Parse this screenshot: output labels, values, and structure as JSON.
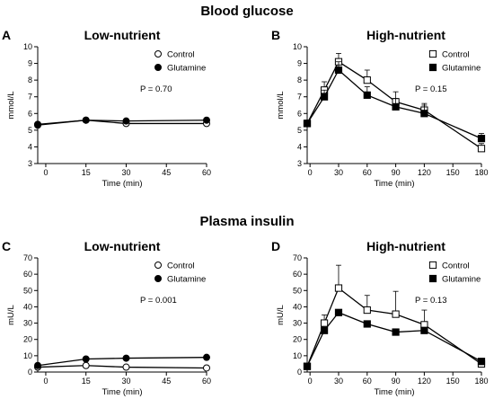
{
  "section_titles": {
    "top": "Blood glucose",
    "bottom": "Plasma insulin"
  },
  "chart_data": [
    {
      "panel": "A",
      "title": "Low-nutrient",
      "type": "line",
      "xlabel": "Time (min)",
      "ylabel": "mmol/L",
      "xlim": [
        -3,
        60
      ],
      "ylim": [
        3,
        10
      ],
      "xticks": [
        0,
        15,
        30,
        45,
        60
      ],
      "yticks": [
        3,
        4,
        5,
        6,
        7,
        8,
        9,
        10
      ],
      "pvalue": "P = 0.70",
      "legend": "top-right",
      "series": [
        {
          "name": "Control",
          "marker": "open-circle",
          "x": [
            -3,
            15,
            30,
            60
          ],
          "y": [
            5.3,
            5.6,
            5.4,
            5.4
          ],
          "err": [
            0,
            0,
            0,
            0
          ]
        },
        {
          "name": "Glutamine",
          "marker": "filled-circle",
          "x": [
            -3,
            15,
            30,
            60
          ],
          "y": [
            5.35,
            5.6,
            5.55,
            5.6
          ],
          "err": [
            0,
            0,
            0,
            0
          ]
        }
      ]
    },
    {
      "panel": "B",
      "title": "High-nutrient",
      "type": "line",
      "xlabel": "Time (min)",
      "ylabel": "mmol/L",
      "xlim": [
        -3,
        180
      ],
      "ylim": [
        3,
        10
      ],
      "xticks": [
        0,
        30,
        60,
        90,
        120,
        150,
        180
      ],
      "yticks": [
        3,
        4,
        5,
        6,
        7,
        8,
        9,
        10
      ],
      "pvalue": "P = 0.15",
      "legend": "top-right",
      "series": [
        {
          "name": "Control",
          "marker": "open-square",
          "x": [
            -3,
            15,
            30,
            60,
            90,
            120,
            180
          ],
          "y": [
            5.4,
            7.4,
            9.1,
            8.0,
            6.7,
            6.2,
            3.9
          ],
          "err": [
            0.2,
            0.5,
            0.5,
            0.6,
            0.6,
            0.4,
            0.3
          ]
        },
        {
          "name": "Glutamine",
          "marker": "filled-square",
          "x": [
            -3,
            15,
            30,
            60,
            90,
            120,
            180
          ],
          "y": [
            5.4,
            7.0,
            8.6,
            7.1,
            6.4,
            6.0,
            4.5
          ],
          "err": [
            0.2,
            0.4,
            0.5,
            0.5,
            0.5,
            0.5,
            0.3
          ]
        }
      ]
    },
    {
      "panel": "C",
      "title": "Low-nutrient",
      "type": "line",
      "xlabel": "Time (min)",
      "ylabel": "mU/L",
      "xlim": [
        -3,
        60
      ],
      "ylim": [
        0,
        70
      ],
      "xticks": [
        0,
        15,
        30,
        45,
        60
      ],
      "yticks": [
        0,
        10,
        20,
        30,
        40,
        50,
        60,
        70
      ],
      "pvalue": "P = 0.001",
      "legend": "top-right",
      "series": [
        {
          "name": "Control",
          "marker": "open-circle",
          "x": [
            -3,
            15,
            30,
            60
          ],
          "y": [
            3,
            4,
            3,
            2.5
          ],
          "err": [
            0,
            0,
            0,
            0
          ]
        },
        {
          "name": "Glutamine",
          "marker": "filled-circle",
          "x": [
            -3,
            15,
            30,
            60
          ],
          "y": [
            4,
            8,
            8.5,
            9
          ],
          "err": [
            0,
            0,
            0,
            0
          ]
        }
      ]
    },
    {
      "panel": "D",
      "title": "High-nutrient",
      "type": "line",
      "xlabel": "Time (min)",
      "ylabel": "mU/L",
      "xlim": [
        -3,
        180
      ],
      "ylim": [
        0,
        70
      ],
      "xticks": [
        0,
        30,
        60,
        90,
        120,
        150,
        180
      ],
      "yticks": [
        0,
        10,
        20,
        30,
        40,
        50,
        60,
        70
      ],
      "pvalue": "P = 0.13",
      "legend": "top-right",
      "series": [
        {
          "name": "Control",
          "marker": "open-square",
          "x": [
            -3,
            15,
            30,
            60,
            90,
            120,
            180
          ],
          "y": [
            3.5,
            30,
            51.5,
            38,
            35.5,
            29,
            5
          ],
          "err": [
            0,
            5,
            14,
            9,
            14,
            9,
            0
          ]
        },
        {
          "name": "Glutamine",
          "marker": "filled-square",
          "x": [
            -3,
            15,
            30,
            60,
            90,
            120,
            180
          ],
          "y": [
            3.5,
            25.5,
            36.5,
            29.5,
            24.5,
            25.5,
            6.5
          ],
          "err": [
            0,
            0,
            0,
            0,
            0,
            0,
            0
          ]
        }
      ]
    }
  ]
}
